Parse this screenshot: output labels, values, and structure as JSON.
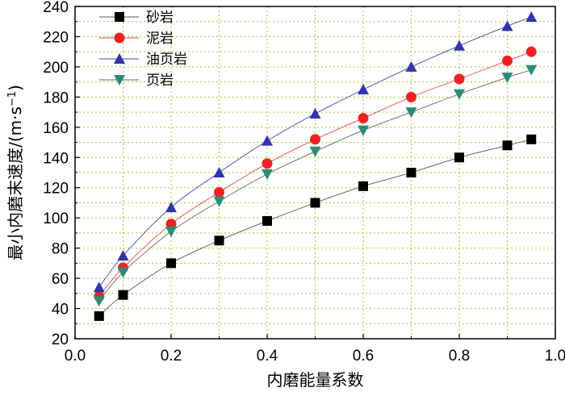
{
  "chart_data": {
    "type": "line",
    "title": "",
    "xlabel": "内磨能量系数",
    "ylabel": "最小内磨末速度/(m·s",
    "ylabel_sup": "−1",
    "ylabel_close": ")",
    "xlim": [
      0.0,
      1.0
    ],
    "ylim": [
      20,
      240
    ],
    "xticks": [
      "0.0",
      "0.2",
      "0.4",
      "0.6",
      "0.8",
      "1.0"
    ],
    "yticks": [
      "20",
      "40",
      "60",
      "80",
      "100",
      "120",
      "140",
      "160",
      "180",
      "200",
      "220",
      "240"
    ],
    "grid": true,
    "legend_position": "top-left",
    "x": [
      0.05,
      0.1,
      0.2,
      0.3,
      0.4,
      0.5,
      0.6,
      0.7,
      0.8,
      0.9,
      0.95
    ],
    "series": [
      {
        "name": "砂岩",
        "marker": "square",
        "color": "#000000",
        "line_color": "#555555",
        "values": [
          35,
          49,
          70,
          85,
          98,
          110,
          121,
          130,
          140,
          148,
          152
        ]
      },
      {
        "name": "泥岩",
        "marker": "circle",
        "color": "#ee2222",
        "line_color": "#ee4444",
        "values": [
          48,
          67,
          96,
          117,
          136,
          152,
          166,
          180,
          192,
          204,
          210
        ]
      },
      {
        "name": "油页岩",
        "marker": "triangle-up",
        "color": "#3333aa",
        "line_color": "#4444aa",
        "values": [
          54,
          75,
          107,
          130,
          151,
          169,
          185,
          200,
          214,
          227,
          233
        ]
      },
      {
        "name": "页岩",
        "marker": "triangle-down",
        "color": "#2e8b74",
        "line_color": "#666666",
        "values": [
          45,
          64,
          91,
          111,
          129,
          144,
          158,
          170,
          182,
          193,
          198
        ]
      }
    ]
  }
}
